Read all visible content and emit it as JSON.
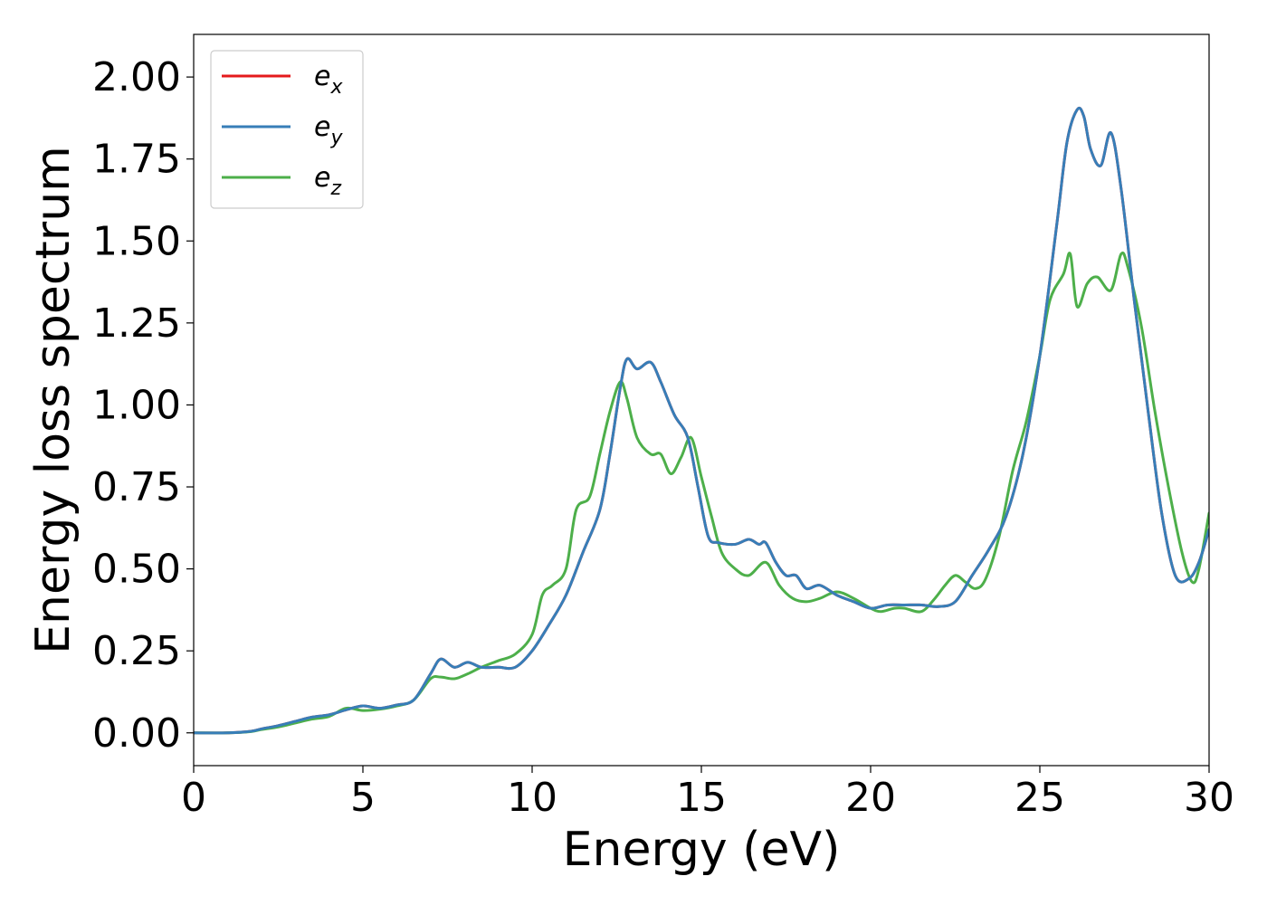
{
  "chart_data": {
    "type": "line",
    "xlabel": "Energy (eV)",
    "ylabel": "Energy loss spectrum",
    "xlim": [
      0,
      30
    ],
    "ylim": [
      -0.1,
      2.13
    ],
    "x_ticks": [
      "0",
      "5",
      "10",
      "15",
      "20",
      "25",
      "30"
    ],
    "y_ticks": [
      "0.00",
      "0.25",
      "0.50",
      "0.75",
      "1.00",
      "1.25",
      "1.50",
      "1.75",
      "2.00"
    ],
    "grid": false,
    "legend_position": "top-left",
    "legend": [
      {
        "base": "e",
        "sub": "x",
        "color": "#e41a1c"
      },
      {
        "base": "e",
        "sub": "y",
        "color": "#377eb8"
      },
      {
        "base": "e",
        "sub": "z",
        "color": "#4daf4a"
      }
    ],
    "series": [
      {
        "name": "ex",
        "color": "#e41a1c",
        "x": [
          0,
          1,
          1.7,
          2,
          2.5,
          3,
          3.5,
          4,
          4.5,
          5,
          5.5,
          6,
          6.5,
          7,
          7.3,
          7.7,
          8.1,
          8.5,
          9,
          9.5,
          10,
          10.5,
          11,
          11.5,
          12,
          12.3,
          12.6,
          12.8,
          13.1,
          13.5,
          13.8,
          14.2,
          14.6,
          14.9,
          15.2,
          15.5,
          16,
          16.4,
          16.7,
          16.9,
          17.2,
          17.5,
          17.8,
          18.1,
          18.5,
          19,
          19.5,
          20,
          20.5,
          21,
          21.5,
          22,
          22.5,
          23,
          23.5,
          24,
          24.5,
          25,
          25.5,
          25.8,
          26.1,
          26.3,
          26.5,
          26.8,
          27.1,
          27.4,
          27.8,
          28.2,
          28.6,
          29,
          29.4,
          29.7,
          30
        ],
        "y": [
          0,
          0,
          0.005,
          0.012,
          0.022,
          0.035,
          0.048,
          0.055,
          0.07,
          0.082,
          0.075,
          0.085,
          0.1,
          0.18,
          0.225,
          0.2,
          0.215,
          0.2,
          0.2,
          0.2,
          0.25,
          0.33,
          0.42,
          0.55,
          0.68,
          0.85,
          1.05,
          1.14,
          1.11,
          1.13,
          1.07,
          0.97,
          0.9,
          0.75,
          0.6,
          0.58,
          0.575,
          0.59,
          0.575,
          0.58,
          0.52,
          0.48,
          0.48,
          0.44,
          0.45,
          0.42,
          0.4,
          0.38,
          0.39,
          0.39,
          0.39,
          0.385,
          0.4,
          0.48,
          0.56,
          0.66,
          0.85,
          1.15,
          1.55,
          1.8,
          1.9,
          1.88,
          1.78,
          1.73,
          1.83,
          1.66,
          1.31,
          0.98,
          0.67,
          0.48,
          0.47,
          0.52,
          0.62
        ]
      },
      {
        "name": "ey",
        "color": "#377eb8",
        "x": [
          0,
          1,
          1.7,
          2,
          2.5,
          3,
          3.5,
          4,
          4.5,
          5,
          5.5,
          6,
          6.5,
          7,
          7.3,
          7.7,
          8.1,
          8.5,
          9,
          9.5,
          10,
          10.5,
          11,
          11.5,
          12,
          12.3,
          12.6,
          12.8,
          13.1,
          13.5,
          13.8,
          14.2,
          14.6,
          14.9,
          15.2,
          15.5,
          16,
          16.4,
          16.7,
          16.9,
          17.2,
          17.5,
          17.8,
          18.1,
          18.5,
          19,
          19.5,
          20,
          20.5,
          21,
          21.5,
          22,
          22.5,
          23,
          23.5,
          24,
          24.5,
          25,
          25.5,
          25.8,
          26.1,
          26.3,
          26.5,
          26.8,
          27.1,
          27.4,
          27.8,
          28.2,
          28.6,
          29,
          29.4,
          29.7,
          30
        ],
        "y": [
          0,
          0,
          0.005,
          0.012,
          0.022,
          0.035,
          0.048,
          0.055,
          0.07,
          0.082,
          0.075,
          0.085,
          0.1,
          0.18,
          0.225,
          0.2,
          0.215,
          0.2,
          0.2,
          0.2,
          0.25,
          0.33,
          0.42,
          0.55,
          0.68,
          0.85,
          1.05,
          1.14,
          1.11,
          1.13,
          1.07,
          0.97,
          0.9,
          0.75,
          0.6,
          0.58,
          0.575,
          0.59,
          0.575,
          0.58,
          0.52,
          0.48,
          0.48,
          0.44,
          0.45,
          0.42,
          0.4,
          0.38,
          0.39,
          0.39,
          0.39,
          0.385,
          0.4,
          0.48,
          0.56,
          0.66,
          0.85,
          1.15,
          1.55,
          1.8,
          1.9,
          1.88,
          1.78,
          1.73,
          1.83,
          1.66,
          1.31,
          0.98,
          0.67,
          0.48,
          0.47,
          0.52,
          0.62
        ]
      },
      {
        "name": "ez",
        "color": "#4daf4a",
        "x": [
          0,
          1,
          1.7,
          2,
          2.5,
          3,
          3.5,
          4,
          4.5,
          5,
          5.5,
          6,
          6.5,
          7,
          7.3,
          7.7,
          8.1,
          8.5,
          9,
          9.5,
          10,
          10.3,
          10.6,
          11,
          11.3,
          11.7,
          12,
          12.3,
          12.6,
          12.8,
          13.1,
          13.5,
          13.8,
          14.1,
          14.4,
          14.7,
          15,
          15.3,
          15.6,
          16,
          16.4,
          16.9,
          17.3,
          17.7,
          18.1,
          18.5,
          19,
          19.5,
          20,
          20.3,
          20.7,
          21,
          21.5,
          21.9,
          22.2,
          22.5,
          22.8,
          23.1,
          23.4,
          23.8,
          24.2,
          24.6,
          25,
          25.3,
          25.7,
          25.9,
          26.1,
          26.4,
          26.7,
          27.1,
          27.4,
          27.6,
          28,
          28.4,
          28.8,
          29.2,
          29.5,
          29.7,
          30
        ],
        "y": [
          0,
          0,
          0.004,
          0.01,
          0.018,
          0.03,
          0.042,
          0.05,
          0.075,
          0.068,
          0.072,
          0.082,
          0.1,
          0.165,
          0.17,
          0.165,
          0.18,
          0.2,
          0.22,
          0.24,
          0.3,
          0.42,
          0.45,
          0.5,
          0.68,
          0.72,
          0.85,
          0.98,
          1.07,
          1.02,
          0.9,
          0.85,
          0.85,
          0.79,
          0.84,
          0.9,
          0.78,
          0.66,
          0.55,
          0.5,
          0.48,
          0.52,
          0.45,
          0.41,
          0.4,
          0.41,
          0.43,
          0.41,
          0.38,
          0.37,
          0.38,
          0.38,
          0.37,
          0.41,
          0.45,
          0.48,
          0.46,
          0.44,
          0.47,
          0.6,
          0.8,
          0.95,
          1.15,
          1.32,
          1.4,
          1.46,
          1.3,
          1.37,
          1.39,
          1.35,
          1.46,
          1.42,
          1.24,
          0.98,
          0.75,
          0.55,
          0.46,
          0.5,
          0.67
        ]
      }
    ]
  }
}
